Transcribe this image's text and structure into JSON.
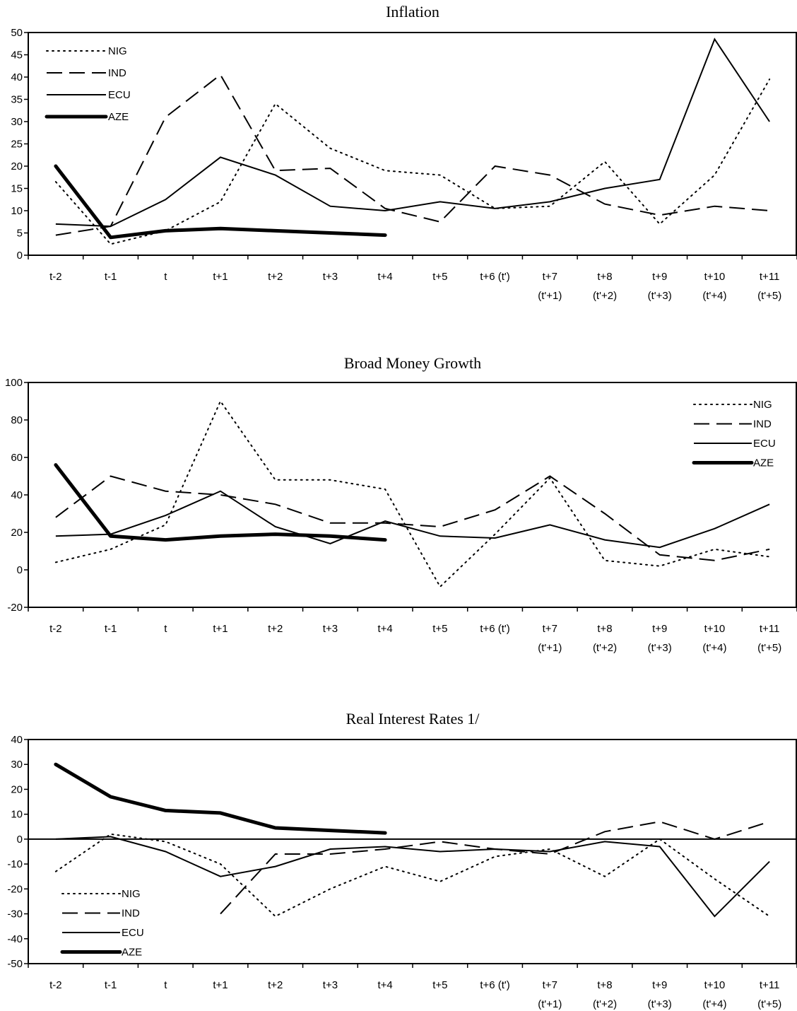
{
  "chart_data": [
    {
      "type": "line",
      "title": "Inflation",
      "xlabel": "",
      "ylabel": "",
      "ylim": [
        0,
        50
      ],
      "ytick_step": 5,
      "categories": [
        "t-2",
        "t-1",
        "t",
        "t+1",
        "t+2",
        "t+3",
        "t+4",
        "t+5",
        "t+6 (t')",
        "t+7",
        "t+8",
        "t+9",
        "t+10",
        "t+11"
      ],
      "category_sublabels": [
        "",
        "",
        "",
        "",
        "",
        "",
        "",
        "",
        "",
        "(t'+1)",
        "(t'+2)",
        "(t'+3)",
        "(t'+4)",
        "(t'+5)"
      ],
      "legend_position": "top-left",
      "zero_line": false,
      "series": [
        {
          "name": "NIG",
          "style": "dotted",
          "values": [
            16.5,
            2.5,
            5.5,
            12,
            34,
            24,
            19,
            18,
            10.5,
            11,
            21,
            7,
            18,
            39.5
          ]
        },
        {
          "name": "IND",
          "style": "dashed",
          "values": [
            4.5,
            6.5,
            31,
            40.5,
            19,
            19.5,
            10.5,
            7.5,
            20,
            18,
            11.5,
            9,
            11,
            10
          ]
        },
        {
          "name": "ECU",
          "style": "solid",
          "values": [
            7,
            6.5,
            12.5,
            22,
            18,
            11,
            10,
            12,
            10.5,
            12,
            15,
            17,
            48.5,
            30
          ]
        },
        {
          "name": "AZE",
          "style": "thick",
          "values": [
            20,
            4,
            5.5,
            6,
            5.5,
            5,
            4.5,
            null,
            null,
            null,
            null,
            null,
            null,
            null
          ]
        }
      ]
    },
    {
      "type": "line",
      "title": "Broad Money Growth",
      "xlabel": "",
      "ylabel": "",
      "ylim": [
        -20,
        100
      ],
      "ytick_step": 20,
      "categories": [
        "t-2",
        "t-1",
        "t",
        "t+1",
        "t+2",
        "t+3",
        "t+4",
        "t+5",
        "t+6 (t')",
        "t+7",
        "t+8",
        "t+9",
        "t+10",
        "t+11"
      ],
      "category_sublabels": [
        "",
        "",
        "",
        "",
        "",
        "",
        "",
        "",
        "",
        "(t'+1)",
        "(t'+2)",
        "(t'+3)",
        "(t'+4)",
        "(t'+5)"
      ],
      "legend_position": "top-right",
      "zero_line": false,
      "series": [
        {
          "name": "NIG",
          "style": "dotted",
          "values": [
            4,
            11,
            24,
            90,
            48,
            48,
            43,
            -9,
            19,
            49,
            5,
            2,
            11,
            7
          ]
        },
        {
          "name": "IND",
          "style": "dashed",
          "values": [
            28,
            50,
            42,
            40,
            35,
            25,
            25,
            23,
            32,
            50,
            30,
            8,
            5,
            11
          ]
        },
        {
          "name": "ECU",
          "style": "solid",
          "values": [
            18,
            19,
            29,
            42,
            23,
            14,
            26,
            18,
            17,
            24,
            16,
            12,
            22,
            35
          ]
        },
        {
          "name": "AZE",
          "style": "thick",
          "values": [
            56,
            18,
            16,
            18,
            19,
            18,
            16,
            null,
            null,
            null,
            null,
            null,
            null,
            null
          ]
        }
      ]
    },
    {
      "type": "line",
      "title": "Real Interest Rates 1/",
      "xlabel": "",
      "ylabel": "",
      "ylim": [
        -50,
        40
      ],
      "ytick_step": 10,
      "categories": [
        "t-2",
        "t-1",
        "t",
        "t+1",
        "t+2",
        "t+3",
        "t+4",
        "t+5",
        "t+6 (t')",
        "t+7",
        "t+8",
        "t+9",
        "t+10",
        "t+11"
      ],
      "category_sublabels": [
        "",
        "",
        "",
        "",
        "",
        "",
        "",
        "",
        "",
        "(t'+1)",
        "(t'+2)",
        "(t'+3)",
        "(t'+4)",
        "(t'+5)"
      ],
      "legend_position": "bottom-left",
      "zero_line": true,
      "series": [
        {
          "name": "NIG",
          "style": "dotted",
          "values": [
            -13,
            2,
            -1,
            -10,
            -31,
            -20,
            -11,
            -17,
            -7,
            -4,
            -15,
            0,
            -16,
            -31
          ]
        },
        {
          "name": "IND",
          "style": "dashed",
          "values": [
            null,
            null,
            null,
            -30,
            -6,
            -6,
            -4,
            -1,
            -4,
            -6,
            3,
            7,
            0,
            7
          ]
        },
        {
          "name": "ECU",
          "style": "solid",
          "values": [
            0,
            1,
            -5,
            -15,
            -11,
            -4,
            -3,
            -5,
            -4,
            -5,
            -1,
            -3,
            -31,
            -9
          ]
        },
        {
          "name": "AZE",
          "style": "thick",
          "values": [
            30,
            17,
            11.5,
            10.5,
            4.5,
            3.5,
            2.5,
            null,
            null,
            null,
            null,
            null,
            null,
            null
          ]
        }
      ]
    }
  ]
}
